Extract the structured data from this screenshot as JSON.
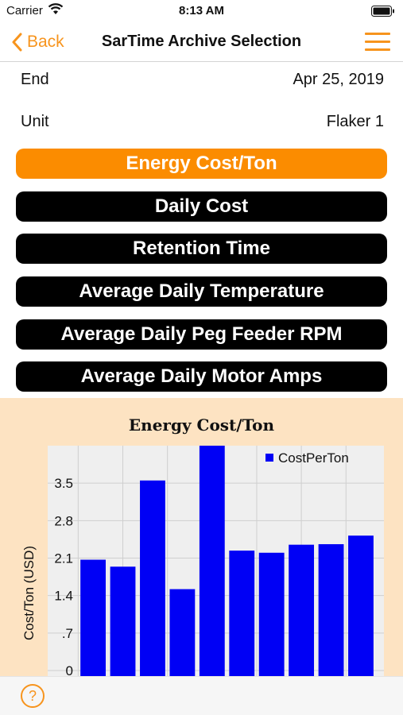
{
  "status_bar": {
    "carrier": "Carrier",
    "time": "8:13 AM"
  },
  "nav": {
    "back_label": "Back",
    "title": "SarTime Archive Selection"
  },
  "fields": {
    "end": {
      "label": "End",
      "value": "Apr 25, 2019"
    },
    "unit": {
      "label": "Unit",
      "value": "Flaker 1"
    }
  },
  "buttons": [
    {
      "label": "Energy Cost/Ton",
      "active": true
    },
    {
      "label": "Daily Cost",
      "active": false
    },
    {
      "label": "Retention Time",
      "active": false
    },
    {
      "label": "Average Daily Temperature",
      "active": false
    },
    {
      "label": "Average Daily Peg Feeder RPM",
      "active": false
    },
    {
      "label": "Average Daily Motor Amps",
      "active": false
    }
  ],
  "bottom": {
    "help_symbol": "?"
  },
  "colors": {
    "accent": "#f7941d",
    "active_button": "#fb8c00",
    "bar": "#0000f5",
    "panel": "#fde3c2"
  },
  "chart_data": {
    "type": "bar",
    "title": "Energy Cost/Ton",
    "ylabel": "Cost/Ton (USD)",
    "xlabel": "",
    "series": [
      {
        "name": "CostPerTon",
        "values": [
          2.07,
          1.94,
          3.55,
          1.52,
          4.2,
          2.24,
          2.2,
          2.35,
          2.36,
          2.52
        ]
      }
    ],
    "yticks": [
      0,
      0.7,
      1.4,
      2.1,
      2.8,
      3.5
    ],
    "ytick_labels": [
      "0",
      ".7",
      "1.4",
      "2.1",
      "2.8",
      "3.5"
    ],
    "ylim": [
      0,
      4.2
    ],
    "grid": true,
    "legend": "top-right"
  }
}
